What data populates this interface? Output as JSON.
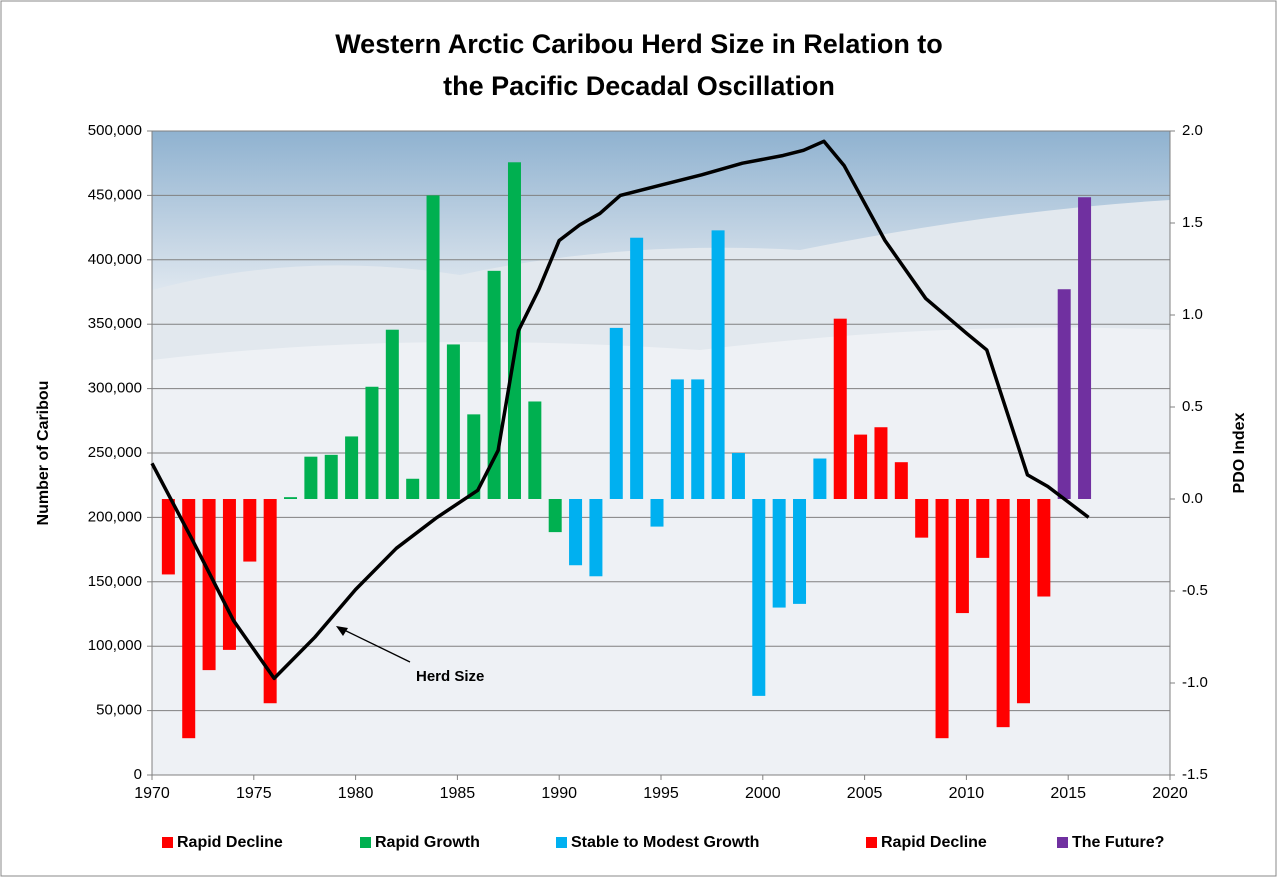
{
  "chart_data": {
    "type": "bar",
    "title": [
      "Western Arctic Caribou Herd Size in Relation to",
      "the Pacific Decadal Oscillation"
    ],
    "y_label": "Number of Caribou",
    "y2_label": "PDO Index",
    "xlim": [
      1970,
      2020
    ],
    "xticks": [
      1970,
      1975,
      1980,
      1985,
      1990,
      1995,
      2000,
      2005,
      2010,
      2015,
      2020
    ],
    "ylim": [
      0,
      500000
    ],
    "yticks": [
      {
        "value": 0,
        "label": "0"
      },
      {
        "value": 50000,
        "label": "50,000"
      },
      {
        "value": 100000,
        "label": "100,000"
      },
      {
        "value": 150000,
        "label": "150,000"
      },
      {
        "value": 200000,
        "label": "200,000"
      },
      {
        "value": 250000,
        "label": "250,000"
      },
      {
        "value": 300000,
        "label": "300,000"
      },
      {
        "value": 350000,
        "label": "350,000"
      },
      {
        "value": 400000,
        "label": "400,000"
      },
      {
        "value": 450000,
        "label": "450,000"
      },
      {
        "value": 500000,
        "label": "500,000"
      }
    ],
    "y2lim": [
      -1.5,
      2.0
    ],
    "y2ticks": [
      -1.5,
      {
        "value": -1.0,
        "label": "-1.0"
      },
      -0.5,
      {
        "value": 0,
        "label": "0.0"
      },
      0.5,
      {
        "value": 1.0,
        "label": "1.0"
      },
      1.5,
      {
        "value": 2.0,
        "label": "2.0"
      }
    ],
    "grid": true,
    "series": [
      {
        "name": "Rapid Decline",
        "type": "bar",
        "axis": "y2",
        "color": "#ff0000",
        "x": [
          1971,
          1972,
          1973,
          1974,
          1975,
          1976
        ],
        "values": [
          -0.41,
          -1.3,
          -0.93,
          -0.82,
          -0.34,
          -1.11
        ]
      },
      {
        "name": "Rapid Growth",
        "type": "bar",
        "axis": "y2",
        "color": "#00b050",
        "x": [
          1977,
          1978,
          1979,
          1980,
          1981,
          1982,
          1983,
          1984,
          1985,
          1986,
          1987,
          1988,
          1989,
          1990
        ],
        "values": [
          0.01,
          0.23,
          0.24,
          0.34,
          0.61,
          0.92,
          0.11,
          1.65,
          0.84,
          0.46,
          1.24,
          1.83,
          0.53,
          -0.18
        ]
      },
      {
        "name": "Stable to Modest Growth",
        "type": "bar",
        "axis": "y2",
        "color": "#00b0f0",
        "x": [
          1991,
          1992,
          1993,
          1994,
          1995,
          1996,
          1997,
          1998,
          1999,
          2000,
          2001,
          2002,
          2003
        ],
        "values": [
          -0.36,
          -0.42,
          0.93,
          1.42,
          -0.15,
          0.65,
          0.65,
          1.46,
          0.25,
          -1.07,
          -0.59,
          -0.57,
          0.22
        ]
      },
      {
        "name": "Rapid Decline",
        "type": "bar",
        "axis": "y2",
        "color": "#ff0000",
        "x": [
          2004,
          2005,
          2006,
          2007,
          2008,
          2009,
          2010,
          2011,
          2012,
          2013,
          2014
        ],
        "values": [
          0.98,
          0.35,
          0.39,
          0.2,
          -0.21,
          -1.3,
          -0.62,
          -0.32,
          -1.24,
          -1.11,
          -0.53
        ]
      },
      {
        "name": "The Future?",
        "type": "bar",
        "axis": "y2",
        "color": "#7030a0",
        "x": [
          2015,
          2016
        ],
        "values": [
          1.14,
          1.64
        ]
      },
      {
        "name": "Herd Size",
        "type": "line",
        "axis": "y",
        "color": "#000000",
        "x": [
          1970,
          1972,
          1974,
          1976,
          1978,
          1980,
          1982,
          1984,
          1986,
          1987,
          1988,
          1989,
          1990,
          1991,
          1992,
          1993,
          1995,
          1997,
          1999,
          2001,
          2002,
          2003,
          2004,
          2006,
          2008,
          2010,
          2011,
          2013,
          2014,
          2016
        ],
        "values": [
          242000,
          182000,
          120000,
          75000,
          107000,
          144000,
          176000,
          200000,
          221000,
          252000,
          345000,
          377000,
          415000,
          427000,
          436000,
          450000,
          458000,
          466000,
          475000,
          481000,
          485000,
          492000,
          473000,
          415000,
          370000,
          343000,
          330000,
          233000,
          224000,
          200000
        ]
      }
    ]
  }
}
